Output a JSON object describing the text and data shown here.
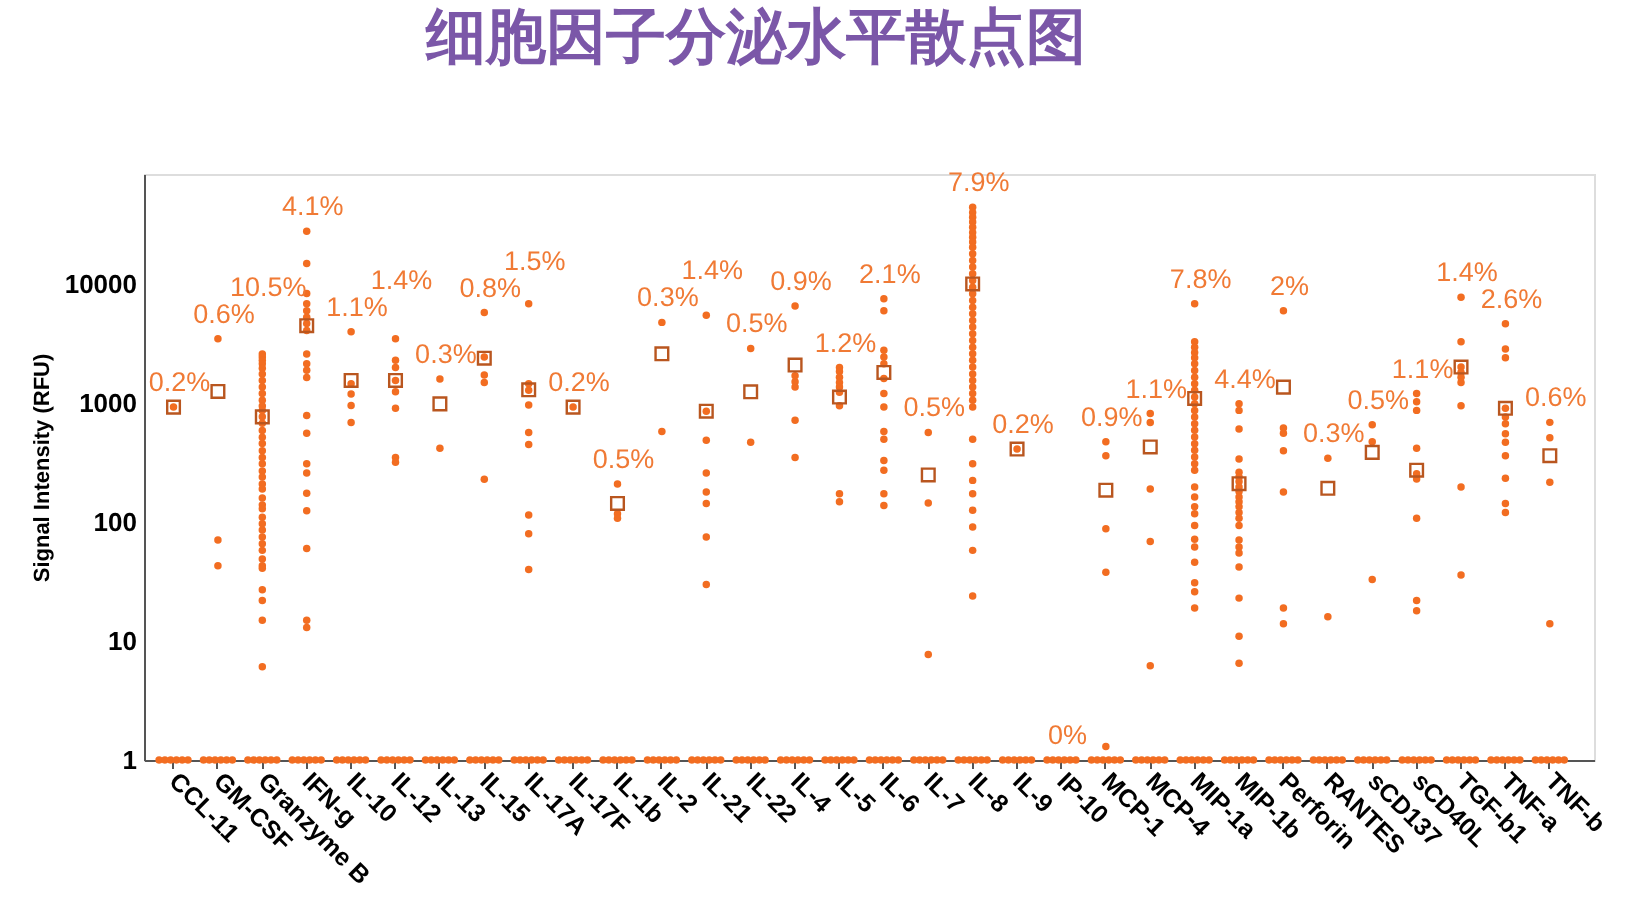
{
  "chart_data": {
    "type": "scatter",
    "title": "细胞因子分泌水平散点图",
    "ylabel": "Signal Intensity (RFU)",
    "categories": [
      "CCL-11",
      "GM-CSF",
      "Granzyme B",
      "IFN-g",
      "IL-10",
      "IL-12",
      "IL-13",
      "IL-15",
      "IL-17A",
      "IL-17F",
      "IL-1b",
      "IL-2",
      "IL-21",
      "IL-22",
      "IL-4",
      "IL-5",
      "IL-6",
      "IL-7",
      "IL-8",
      "IL-9",
      "IP-10",
      "MCP-1",
      "MCP-4",
      "MIP-1a",
      "MIP-1b",
      "Perforin",
      "RANTES",
      "sCD137",
      "sCD40L",
      "TGF-b1",
      "TNF-a",
      "TNF-b"
    ],
    "log": true,
    "ylim": [
      1,
      85000
    ],
    "yticks": [
      1,
      10,
      100,
      1000,
      10000
    ],
    "grid": false,
    "marker": "circle",
    "series": [
      {
        "color": "#f26d21",
        "x": [
          "CCL-11",
          "GM-CSF",
          "GM-CSF",
          "GM-CSF",
          "Granzyme B",
          "Granzyme B",
          "Granzyme B",
          "Granzyme B",
          "Granzyme B",
          "Granzyme B",
          "Granzyme B",
          "Granzyme B",
          "Granzyme B",
          "Granzyme B",
          "Granzyme B",
          "Granzyme B",
          "Granzyme B",
          "Granzyme B",
          "Granzyme B",
          "Granzyme B",
          "Granzyme B",
          "Granzyme B",
          "Granzyme B",
          "Granzyme B",
          "Granzyme B",
          "Granzyme B",
          "Granzyme B",
          "Granzyme B",
          "Granzyme B",
          "Granzyme B",
          "Granzyme B",
          "Granzyme B",
          "Granzyme B",
          "Granzyme B",
          "Granzyme B",
          "Granzyme B",
          "Granzyme B",
          "Granzyme B",
          "Granzyme B",
          "Granzyme B",
          "Granzyme B",
          "Granzyme B",
          "Granzyme B",
          "Granzyme B",
          "IFN-g",
          "IFN-g",
          "IFN-g",
          "IFN-g",
          "IFN-g",
          "IFN-g",
          "IFN-g",
          "IFN-g",
          "IFN-g",
          "IFN-g",
          "IFN-g",
          "IFN-g",
          "IFN-g",
          "IFN-g",
          "IFN-g",
          "IFN-g",
          "IFN-g",
          "IFN-g",
          "IFN-g",
          "IFN-g",
          "IFN-g",
          "IL-10",
          "IL-10",
          "IL-10",
          "IL-10",
          "IL-10",
          "IL-12",
          "IL-12",
          "IL-12",
          "IL-12",
          "IL-12",
          "IL-12",
          "IL-12",
          "IL-12",
          "IL-13",
          "IL-13",
          "IL-15",
          "IL-15",
          "IL-15",
          "IL-15",
          "IL-15",
          "IL-17A",
          "IL-17A",
          "IL-17A",
          "IL-17A",
          "IL-17A",
          "IL-17A",
          "IL-17A",
          "IL-17A",
          "IL-17A",
          "IL-17F",
          "IL-1b",
          "IL-1b",
          "IL-1b",
          "IL-2",
          "IL-2",
          "IL-21",
          "IL-21",
          "IL-21",
          "IL-21",
          "IL-21",
          "IL-21",
          "IL-21",
          "IL-21",
          "IL-22",
          "IL-22",
          "IL-4",
          "IL-4",
          "IL-4",
          "IL-4",
          "IL-4",
          "IL-4",
          "IL-5",
          "IL-5",
          "IL-5",
          "IL-5",
          "IL-5",
          "IL-5",
          "IL-5",
          "IL-5",
          "IL-5",
          "IL-6",
          "IL-6",
          "IL-6",
          "IL-6",
          "IL-6",
          "IL-6",
          "IL-6",
          "IL-6",
          "IL-6",
          "IL-6",
          "IL-6",
          "IL-6",
          "IL-6",
          "IL-6",
          "IL-7",
          "IL-7",
          "IL-7",
          "IL-8",
          "IL-8",
          "IL-8",
          "IL-8",
          "IL-8",
          "IL-8",
          "IL-8",
          "IL-8",
          "IL-8",
          "IL-8",
          "IL-8",
          "IL-8",
          "IL-8",
          "IL-8",
          "IL-8",
          "IL-8",
          "IL-8",
          "IL-8",
          "IL-8",
          "IL-8",
          "IL-8",
          "IL-8",
          "IL-8",
          "IL-8",
          "IL-8",
          "IL-8",
          "IL-8",
          "IL-8",
          "IL-8",
          "IL-8",
          "IL-8",
          "IL-8",
          "IL-8",
          "IL-8",
          "IL-8",
          "IL-8",
          "IL-8",
          "IL-8",
          "IL-8",
          "IL-8",
          "IL-8",
          "IL-9",
          "MCP-1",
          "MCP-1",
          "MCP-1",
          "MCP-1",
          "MCP-1",
          "MCP-4",
          "MCP-4",
          "MCP-4",
          "MCP-4",
          "MCP-4",
          "MIP-1a",
          "MIP-1a",
          "MIP-1a",
          "MIP-1a",
          "MIP-1a",
          "MIP-1a",
          "MIP-1a",
          "MIP-1a",
          "MIP-1a",
          "MIP-1a",
          "MIP-1a",
          "MIP-1a",
          "MIP-1a",
          "MIP-1a",
          "MIP-1a",
          "MIP-1a",
          "MIP-1a",
          "MIP-1a",
          "MIP-1a",
          "MIP-1a",
          "MIP-1a",
          "MIP-1a",
          "MIP-1a",
          "MIP-1a",
          "MIP-1a",
          "MIP-1a",
          "MIP-1a",
          "MIP-1a",
          "MIP-1a",
          "MIP-1a",
          "MIP-1a",
          "MIP-1a",
          "MIP-1a",
          "MIP-1b",
          "MIP-1b",
          "MIP-1b",
          "MIP-1b",
          "MIP-1b",
          "MIP-1b",
          "MIP-1b",
          "MIP-1b",
          "MIP-1b",
          "MIP-1b",
          "MIP-1b",
          "MIP-1b",
          "MIP-1b",
          "MIP-1b",
          "MIP-1b",
          "MIP-1b",
          "MIP-1b",
          "MIP-1b",
          "MIP-1b",
          "MIP-1b",
          "MIP-1b",
          "MIP-1b",
          "Perforin",
          "Perforin",
          "Perforin",
          "Perforin",
          "Perforin",
          "Perforin",
          "Perforin",
          "RANTES",
          "RANTES",
          "sCD137",
          "sCD137",
          "sCD137",
          "sCD40L",
          "sCD40L",
          "sCD40L",
          "sCD40L",
          "sCD40L",
          "sCD40L",
          "sCD40L",
          "sCD40L",
          "sCD40L",
          "TGF-b1",
          "TGF-b1",
          "TGF-b1",
          "TGF-b1",
          "TGF-b1",
          "TGF-b1",
          "TGF-b1",
          "TGF-b1",
          "TGF-b1",
          "TNF-a",
          "TNF-a",
          "TNF-a",
          "TNF-a",
          "TNF-a",
          "TNF-a",
          "TNF-a",
          "TNF-a",
          "TNF-a",
          "TNF-a",
          "TNF-a",
          "TNF-a",
          "TNF-b",
          "TNF-b",
          "TNF-b",
          "TNF-b",
          "CCL-11",
          "CCL-11",
          "CCL-11",
          "CCL-11",
          "CCL-11",
          "CCL-11",
          "GM-CSF",
          "GM-CSF",
          "GM-CSF",
          "GM-CSF",
          "GM-CSF",
          "GM-CSF",
          "Granzyme B",
          "Granzyme B",
          "Granzyme B",
          "Granzyme B",
          "Granzyme B",
          "Granzyme B",
          "IFN-g",
          "IFN-g",
          "IFN-g",
          "IFN-g",
          "IFN-g",
          "IFN-g",
          "IL-10",
          "IL-10",
          "IL-10",
          "IL-10",
          "IL-10",
          "IL-10",
          "IL-12",
          "IL-12",
          "IL-12",
          "IL-12",
          "IL-12",
          "IL-12",
          "IL-13",
          "IL-13",
          "IL-13",
          "IL-13",
          "IL-13",
          "IL-13",
          "IL-15",
          "IL-15",
          "IL-15",
          "IL-15",
          "IL-15",
          "IL-15",
          "IL-17A",
          "IL-17A",
          "IL-17A",
          "IL-17A",
          "IL-17A",
          "IL-17A",
          "IL-17F",
          "IL-17F",
          "IL-17F",
          "IL-17F",
          "IL-17F",
          "IL-17F",
          "IL-1b",
          "IL-1b",
          "IL-1b",
          "IL-1b",
          "IL-1b",
          "IL-1b",
          "IL-2",
          "IL-2",
          "IL-2",
          "IL-2",
          "IL-2",
          "IL-2",
          "IL-21",
          "IL-21",
          "IL-21",
          "IL-21",
          "IL-21",
          "IL-21",
          "IL-22",
          "IL-22",
          "IL-22",
          "IL-22",
          "IL-22",
          "IL-22",
          "IL-4",
          "IL-4",
          "IL-4",
          "IL-4",
          "IL-4",
          "IL-4",
          "IL-5",
          "IL-5",
          "IL-5",
          "IL-5",
          "IL-5",
          "IL-5",
          "IL-6",
          "IL-6",
          "IL-6",
          "IL-6",
          "IL-6",
          "IL-6",
          "IL-7",
          "IL-7",
          "IL-7",
          "IL-7",
          "IL-7",
          "IL-7",
          "IL-8",
          "IL-8",
          "IL-8",
          "IL-8",
          "IL-8",
          "IL-8",
          "IL-9",
          "IL-9",
          "IL-9",
          "IL-9",
          "IL-9",
          "IL-9",
          "IP-10",
          "IP-10",
          "IP-10",
          "IP-10",
          "IP-10",
          "IP-10",
          "MCP-1",
          "MCP-1",
          "MCP-1",
          "MCP-1",
          "MCP-1",
          "MCP-1",
          "MCP-4",
          "MCP-4",
          "MCP-4",
          "MCP-4",
          "MCP-4",
          "MCP-4",
          "MIP-1a",
          "MIP-1a",
          "MIP-1a",
          "MIP-1a",
          "MIP-1a",
          "MIP-1a",
          "MIP-1b",
          "MIP-1b",
          "MIP-1b",
          "MIP-1b",
          "MIP-1b",
          "MIP-1b",
          "Perforin",
          "Perforin",
          "Perforin",
          "Perforin",
          "Perforin",
          "Perforin",
          "RANTES",
          "RANTES",
          "RANTES",
          "RANTES",
          "RANTES",
          "RANTES",
          "sCD137",
          "sCD137",
          "sCD137",
          "sCD137",
          "sCD137",
          "sCD137",
          "sCD40L",
          "sCD40L",
          "sCD40L",
          "sCD40L",
          "sCD40L",
          "sCD40L",
          "TGF-b1",
          "TGF-b1",
          "TGF-b1",
          "TGF-b1",
          "TGF-b1",
          "TGF-b1",
          "TNF-a",
          "TNF-a",
          "TNF-a",
          "TNF-a",
          "TNF-a",
          "TNF-a",
          "TNF-b",
          "TNF-b",
          "TNF-b",
          "TNF-b",
          "TNF-b",
          "TNF-b"
        ],
        "values": [
          930,
          3500,
          71,
          43,
          2600,
          2450,
          2300,
          2150,
          1970,
          1770,
          1560,
          1370,
          1210,
          1060,
          950,
          870,
          770,
          680,
          590,
          520,
          460,
          400,
          350,
          310,
          270,
          240,
          210,
          190,
          160,
          140,
          130,
          110,
          97,
          86,
          75,
          66,
          58,
          49,
          43,
          41,
          27,
          22,
          15,
          6.1,
          28000,
          15000,
          8400,
          6900,
          6000,
          5300,
          4700,
          4100,
          2600,
          2150,
          1900,
          1650,
          790,
          560,
          310,
          260,
          175,
          125,
          60,
          15,
          13,
          4000,
          1460,
          1200,
          960,
          690,
          3500,
          2300,
          2000,
          1560,
          1250,
          910,
          350,
          320,
          1600,
          420,
          5800,
          2450,
          1730,
          1500,
          230,
          6900,
          1460,
          1290,
          970,
          570,
          450,
          115,
          80,
          40,
          930,
          210,
          118,
          108,
          4800,
          580,
          5500,
          860,
          490,
          260,
          180,
          144,
          75,
          30,
          2900,
          470,
          6600,
          1710,
          1520,
          1370,
          720,
          350,
          2000,
          1850,
          1660,
          1500,
          1370,
          1240,
          955,
          174,
          149,
          7600,
          6000,
          2800,
          2450,
          2150,
          1620,
          1210,
          930,
          580,
          500,
          330,
          274,
          174,
          138,
          570,
          145,
          7.7,
          44700,
          40300,
          36800,
          33600,
          30300,
          27400,
          25000,
          22800,
          20600,
          18100,
          15900,
          14000,
          12300,
          10800,
          9500,
          8350,
          7340,
          6450,
          5670,
          4980,
          4380,
          3850,
          3380,
          2970,
          2610,
          2300,
          2020,
          1770,
          1560,
          1370,
          1210,
          1060,
          930,
          500,
          310,
          225,
          174,
          126,
          91,
          58,
          24,
          413,
          476,
          363,
          88,
          38,
          1.3,
          820,
          690,
          190,
          69,
          6.2,
          6900,
          3300,
          2970,
          2680,
          2420,
          2150,
          1890,
          1660,
          1460,
          1290,
          1130,
          994,
          873,
          767,
          675,
          593,
          521,
          458,
          403,
          354,
          311,
          274,
          198,
          163,
          135,
          118,
          94,
          72,
          62,
          46,
          31,
          26,
          19,
          994,
          873,
          608,
          341,
          263,
          240,
          220,
          198,
          181,
          163,
          149,
          135,
          121,
          108,
          94,
          71,
          62,
          55,
          42,
          23,
          11,
          6.5,
          6000,
          620,
          560,
          400,
          180,
          19,
          14,
          345,
          16,
          660,
          476,
          33,
          1210,
          1030,
          873,
          419,
          256,
          231,
          108,
          22,
          18,
          7800,
          3300,
          2020,
          1820,
          1660,
          1500,
          955,
          198,
          36,
          4670,
          2860,
          2420,
          908,
          767,
          675,
          556,
          470,
          363,
          234,
          144,
          121,
          692,
          514,
          217,
          14,
          1,
          1,
          1,
          1,
          1,
          1,
          1,
          1,
          1,
          1,
          1,
          1,
          1,
          1,
          1,
          1,
          1,
          1,
          1,
          1,
          1,
          1,
          1,
          1,
          1,
          1,
          1,
          1,
          1,
          1,
          1,
          1,
          1,
          1,
          1,
          1,
          1,
          1,
          1,
          1,
          1,
          1,
          1,
          1,
          1,
          1,
          1,
          1,
          1,
          1,
          1,
          1,
          1,
          1,
          1,
          1,
          1,
          1,
          1,
          1,
          1,
          1,
          1,
          1,
          1,
          1,
          1,
          1,
          1,
          1,
          1,
          1,
          1,
          1,
          1,
          1,
          1,
          1,
          1,
          1,
          1,
          1,
          1,
          1,
          1,
          1,
          1,
          1,
          1,
          1,
          1,
          1,
          1,
          1,
          1,
          1,
          1,
          1,
          1,
          1,
          1,
          1,
          1,
          1,
          1,
          1,
          1,
          1,
          1,
          1,
          1,
          1,
          1,
          1,
          1,
          1,
          1,
          1,
          1,
          1,
          1,
          1,
          1,
          1,
          1,
          1,
          1,
          1,
          1,
          1,
          1,
          1,
          1,
          1,
          1,
          1,
          1,
          1,
          1,
          1,
          1,
          1,
          1,
          1,
          1,
          1,
          1,
          1,
          1,
          1,
          1,
          1,
          1,
          1,
          1,
          1,
          1,
          1,
          1,
          1,
          1,
          1,
          1,
          1,
          1,
          1,
          1,
          1,
          1,
          1,
          1,
          1,
          1,
          1,
          1,
          1,
          1,
          1,
          1,
          1,
          1,
          1,
          1,
          1,
          1,
          1,
          1,
          1,
          1,
          1,
          1,
          1
        ]
      },
      {
        "type": "scatter",
        "marker": "square",
        "color": "#b9561f",
        "values": [
          930,
          1260,
          770,
          4500,
          1560,
          1560,
          990,
          2400,
          1300,
          930,
          144,
          2610,
          860,
          1250,
          2100,
          1130,
          1820,
          250,
          10100,
          413,
          null,
          186,
          430,
          1100,
          211,
          1370,
          193,
          387,
          274,
          2020,
          908,
          363
        ]
      }
    ],
    "annotations": [
      {
        "text": "0.2%",
        "x": "CCL-11",
        "y": 930
      },
      {
        "text": "0.6%",
        "x": "GM-CSF",
        "y": 3500
      },
      {
        "text": "10.5%",
        "x": "Granzyme B",
        "y": 2600
      },
      {
        "text": "4.1%",
        "x": "IFN-g",
        "y": 28000
      },
      {
        "text": "1.1%",
        "x": "IL-10",
        "y": 4000
      },
      {
        "text": "1.4%",
        "x": "IL-12",
        "y": 3500
      },
      {
        "text": "0.3%",
        "x": "IL-13",
        "y": 1600
      },
      {
        "text": "0.8%",
        "x": "IL-15",
        "y": 5800
      },
      {
        "text": "1.5%",
        "x": "IL-17A",
        "y": 6900
      },
      {
        "text": "0.2%",
        "x": "IL-17F",
        "y": 930
      },
      {
        "text": "0.5%",
        "x": "IL-1b",
        "y": 210
      },
      {
        "text": "0.3%",
        "x": "IL-2",
        "y": 4800
      },
      {
        "text": "1.4%",
        "x": "IL-21",
        "y": 5500
      },
      {
        "text": "0.5%",
        "x": "IL-22",
        "y": 2900
      },
      {
        "text": "0.9%",
        "x": "IL-4",
        "y": 6600
      },
      {
        "text": "1.2%",
        "x": "IL-5",
        "y": 2000
      },
      {
        "text": "2.1%",
        "x": "IL-6",
        "y": 7600
      },
      {
        "text": "0.5%",
        "x": "IL-7",
        "y": 570
      },
      {
        "text": "7.9%",
        "x": "IL-8",
        "y": 44700
      },
      {
        "text": "0.2%",
        "x": "IL-9",
        "y": 413
      },
      {
        "text": "0%",
        "x": "IP-10",
        "y": 1
      },
      {
        "text": "0.9%",
        "x": "MCP-1",
        "y": 476
      },
      {
        "text": "1.1%",
        "x": "MCP-4",
        "y": 820
      },
      {
        "text": "7.8%",
        "x": "MIP-1a",
        "y": 6900
      },
      {
        "text": "4.4%",
        "x": "MIP-1b",
        "y": 994
      },
      {
        "text": "2%",
        "x": "Perforin",
        "y": 6000
      },
      {
        "text": "0.3%",
        "x": "RANTES",
        "y": 345
      },
      {
        "text": "0.5%",
        "x": "sCD137",
        "y": 660
      },
      {
        "text": "1.1%",
        "x": "sCD40L",
        "y": 1210
      },
      {
        "text": "1.4%",
        "x": "TGF-b1",
        "y": 7800
      },
      {
        "text": "2.6%",
        "x": "TNF-a",
        "y": 4670
      },
      {
        "text": "0.6%",
        "x": "TNF-b",
        "y": 692
      }
    ]
  }
}
